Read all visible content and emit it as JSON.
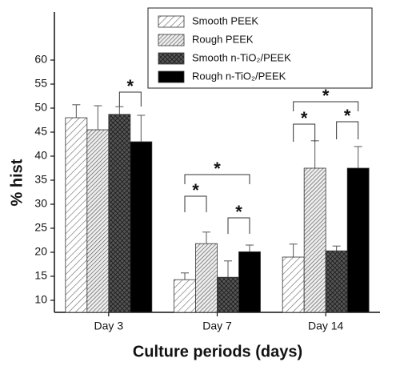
{
  "chart_data": {
    "type": "bar",
    "x_label": "Culture periods (days)",
    "y_label": "% hist",
    "categories": [
      "Day 3",
      "Day 7",
      "Day 14"
    ],
    "series": [
      {
        "name": "Smooth PEEK",
        "color": "#ffffff",
        "values": [
          48,
          14.3,
          19
        ],
        "errors": [
          2.7,
          1.4,
          2.7
        ]
      },
      {
        "name": "Rough PEEK",
        "color": "#bbbbbb",
        "values": [
          45.5,
          21.8,
          37.5
        ],
        "errors": [
          5,
          2.4,
          5.7
        ]
      },
      {
        "name": "Smooth n-TiO₂/PEEK",
        "color": "#444444",
        "values": [
          48.7,
          14.8,
          20.3
        ],
        "errors": [
          1.6,
          3.4,
          1
        ]
      },
      {
        "name": "Rough n-TiO₂/PEEK",
        "color": "#000000",
        "values": [
          43,
          20.1,
          37.5
        ],
        "errors": [
          5.5,
          1.4,
          4.5
        ]
      }
    ],
    "annotations": [
      {
        "text": "*"
      },
      {
        "text": "*"
      },
      {
        "text": "*"
      },
      {
        "text": "*"
      },
      {
        "text": "*"
      },
      {
        "text": "*"
      },
      {
        "text": "*"
      }
    ],
    "ylim": [
      7.5,
      70
    ],
    "yticks": [
      10,
      15,
      20,
      25,
      30,
      35,
      40,
      45,
      50,
      55,
      60
    ],
    "grid": false,
    "legend": "top-right"
  }
}
